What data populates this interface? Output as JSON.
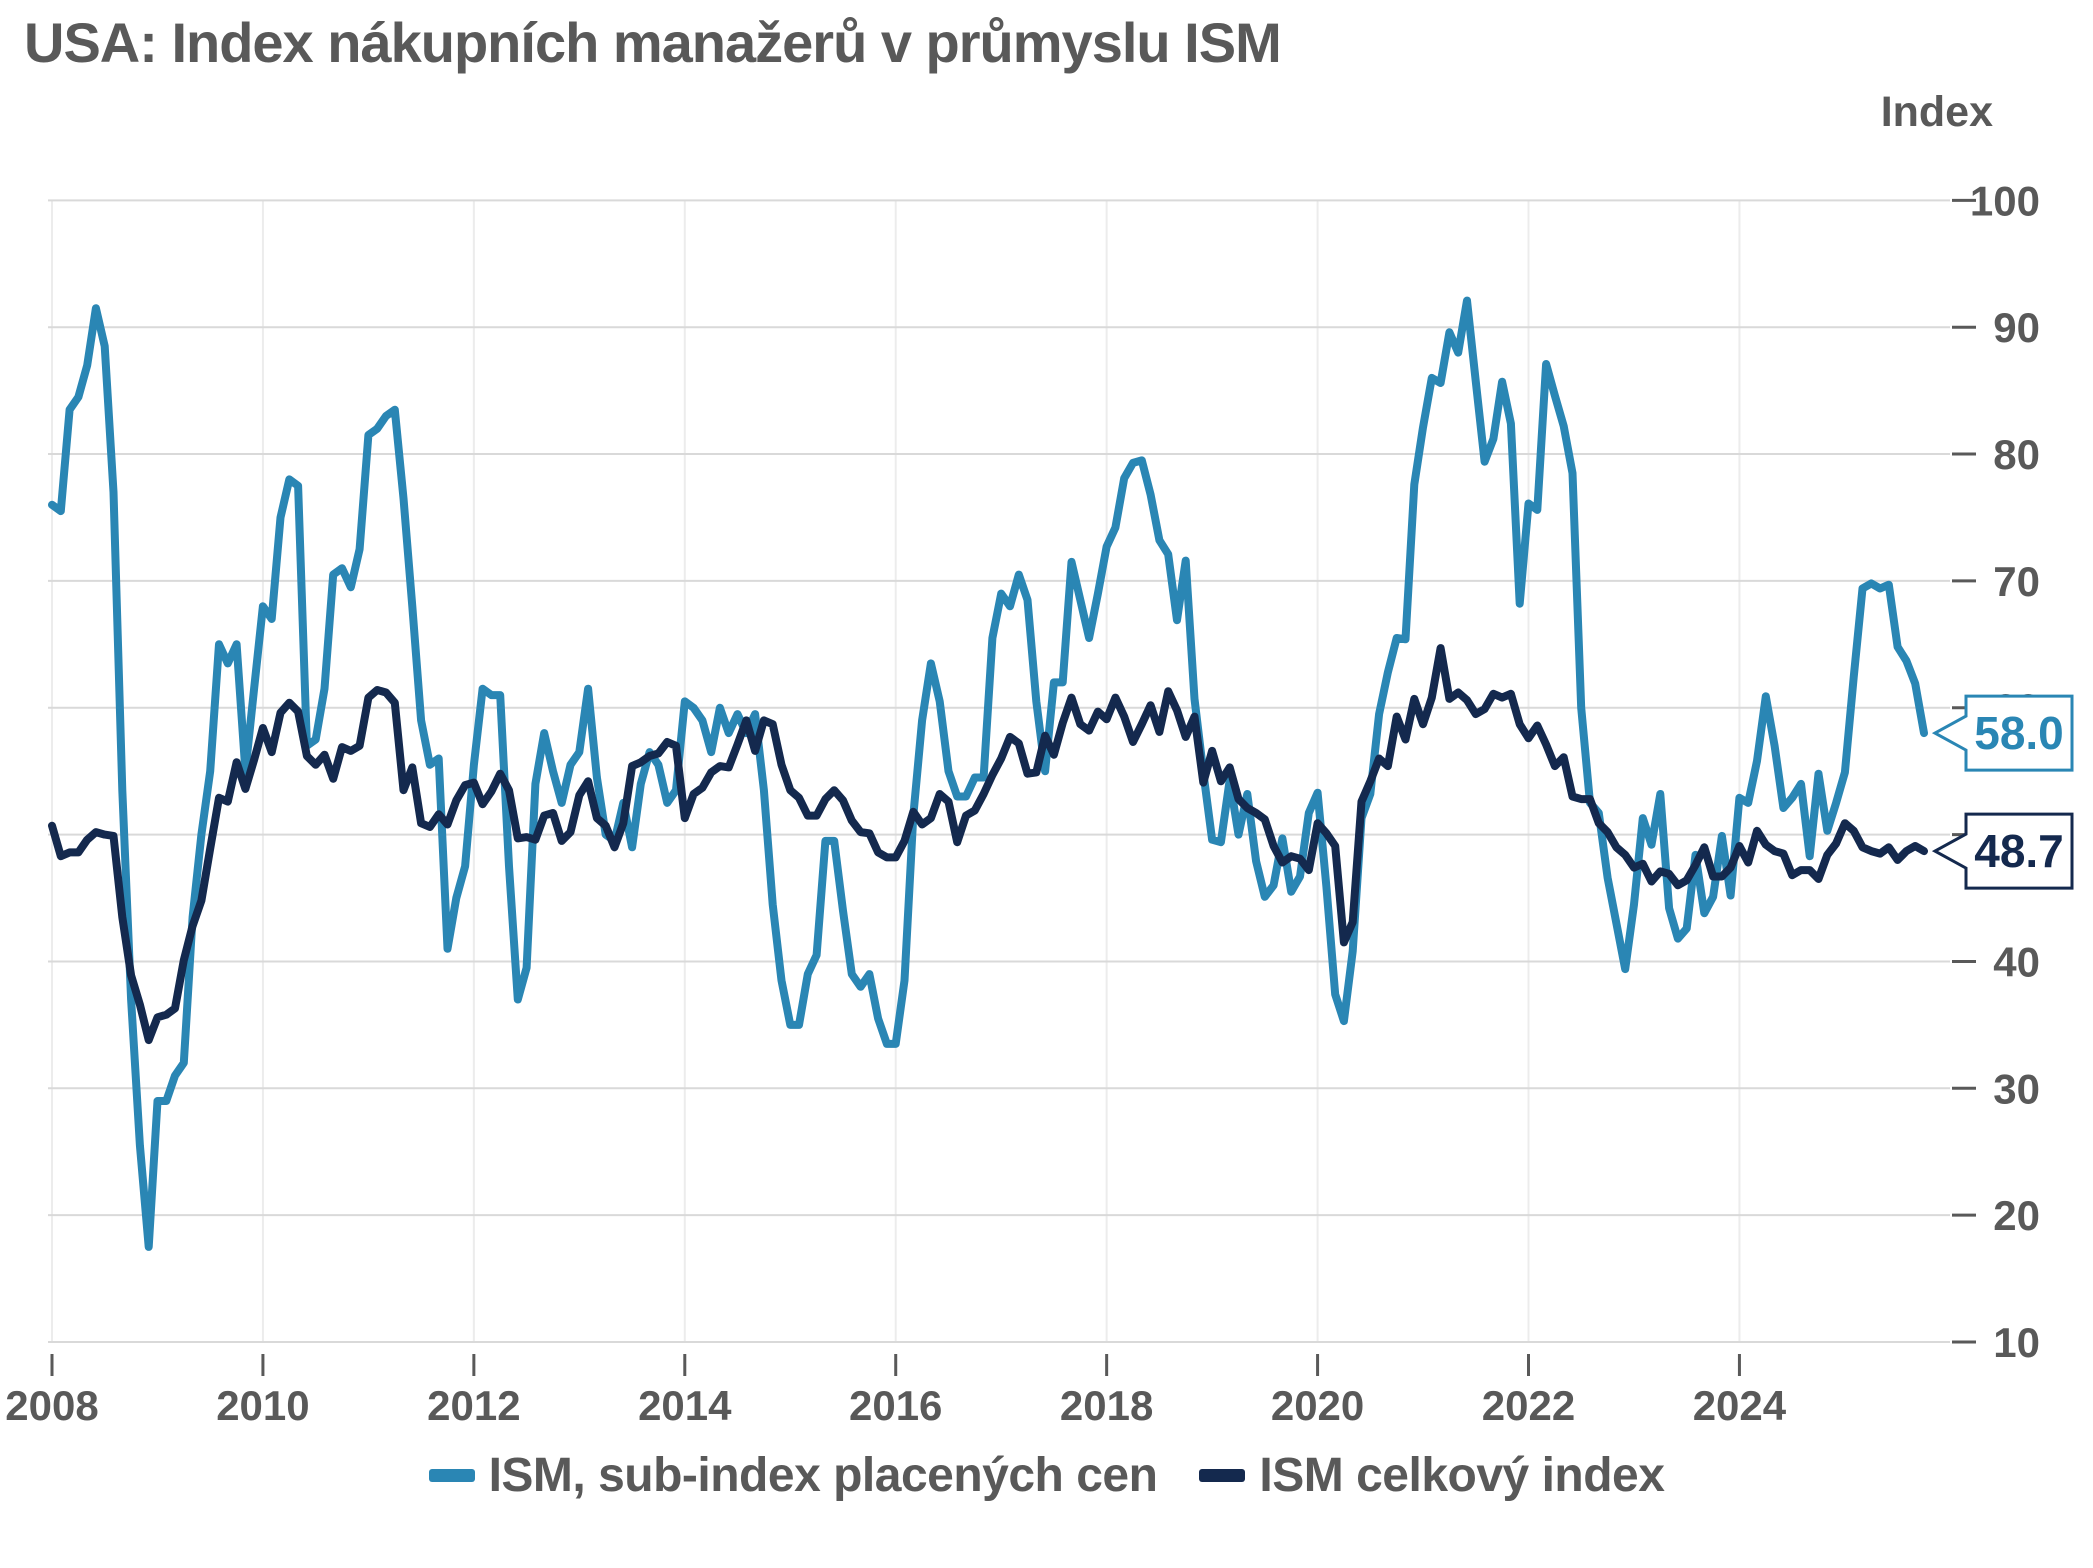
{
  "title": "USA: Index nákupních manažerů v průmyslu ISM",
  "axis": {
    "unit_label": "Index"
  },
  "legend": [
    {
      "label": "ISM, sub-index placených cen",
      "color": "#2A86B4"
    },
    {
      "label": "ISM celkový index",
      "color": "#14294E"
    }
  ],
  "callouts": [
    {
      "name": "prices-callout",
      "label": "58.0",
      "value": 58.0,
      "color": "#2A86B4"
    },
    {
      "name": "pmi-callout",
      "label": "48.7",
      "value": 48.7,
      "color": "#14294E"
    }
  ],
  "chart_data": {
    "type": "line",
    "title": "USA: Index nákupních manažerů v průmyslu ISM",
    "ylabel": "Index",
    "ylim": [
      10,
      100
    ],
    "y_ticks": [
      100,
      90,
      80,
      70,
      60,
      50,
      40,
      30,
      20,
      10
    ],
    "x_tick_years": [
      2008,
      2010,
      2012,
      2014,
      2016,
      2018,
      2020,
      2022,
      2024
    ],
    "x_start": "2008-01",
    "x_end": "2025-10",
    "frequency": "monthly",
    "grid": true,
    "legend_position": "bottom",
    "series": [
      {
        "name": "ISM, sub-index placených cen",
        "color": "#2A86B4",
        "last_value": 58.0,
        "values": [
          76.0,
          75.5,
          83.5,
          84.5,
          87.0,
          91.5,
          88.5,
          77.0,
          53.5,
          37.0,
          25.5,
          17.5,
          29.0,
          29.0,
          31.0,
          32.0,
          43.5,
          50.0,
          55.0,
          65.0,
          63.5,
          65.0,
          55.0,
          61.5,
          68.0,
          67.0,
          75.0,
          78.0,
          77.5,
          57.0,
          57.5,
          61.5,
          70.5,
          71.0,
          69.5,
          72.5,
          81.5,
          82.0,
          83.0,
          83.5,
          76.5,
          68.0,
          59.0,
          55.5,
          56.0,
          41.0,
          45.0,
          47.5,
          55.5,
          61.5,
          61.0,
          61.0,
          47.5,
          37.0,
          39.5,
          54.0,
          58.0,
          55.0,
          52.5,
          55.5,
          56.5,
          61.5,
          54.5,
          50.0,
          49.5,
          52.5,
          49.0,
          54.0,
          56.5,
          55.5,
          52.5,
          53.5,
          60.5,
          60.0,
          59.0,
          56.5,
          60.0,
          58.0,
          59.5,
          58.0,
          59.5,
          53.5,
          44.5,
          38.5,
          35.0,
          35.0,
          39.0,
          40.5,
          49.5,
          49.5,
          44.0,
          39.0,
          38.0,
          39.0,
          35.5,
          33.5,
          33.5,
          38.5,
          51.5,
          59.0,
          63.5,
          60.5,
          55.0,
          53.0,
          53.0,
          54.5,
          54.5,
          65.5,
          69.0,
          68.0,
          70.5,
          68.5,
          60.5,
          55.0,
          62.0,
          62.0,
          71.5,
          68.5,
          65.5,
          69.0,
          72.7,
          74.2,
          78.1,
          79.3,
          79.5,
          76.8,
          73.2,
          72.1,
          66.9,
          71.6,
          60.7,
          54.9,
          49.6,
          49.4,
          54.3,
          50.0,
          53.2,
          47.9,
          45.1,
          46.0,
          49.7,
          45.5,
          46.7,
          51.7,
          53.3,
          45.9,
          37.4,
          35.3,
          40.8,
          51.3,
          53.2,
          59.5,
          62.8,
          65.5,
          65.4,
          77.6,
          82.1,
          86.0,
          85.6,
          89.6,
          88.0,
          92.1,
          85.7,
          79.4,
          81.2,
          85.7,
          82.4,
          68.2,
          76.1,
          75.6,
          87.1,
          84.6,
          82.2,
          78.5,
          60.0,
          52.5,
          51.7,
          46.6,
          43.0,
          39.4,
          44.5,
          51.3,
          49.2,
          53.2,
          44.2,
          41.8,
          42.6,
          48.4,
          43.8,
          45.1,
          49.9,
          45.2,
          52.9,
          52.5,
          55.8,
          60.9,
          57.0,
          52.1,
          52.9,
          54.0,
          48.3,
          54.8,
          50.3,
          52.5,
          54.9,
          62.4,
          69.4,
          69.8,
          69.4,
          69.7,
          64.8,
          63.7,
          61.9,
          58.0
        ]
      },
      {
        "name": "ISM celkový index",
        "color": "#14294E",
        "last_value": 48.7,
        "values": [
          50.7,
          48.3,
          48.6,
          48.6,
          49.6,
          50.2,
          50.0,
          49.9,
          43.5,
          38.9,
          36.6,
          33.8,
          35.6,
          35.8,
          36.3,
          40.1,
          42.8,
          44.8,
          48.9,
          52.9,
          52.6,
          55.7,
          53.6,
          55.9,
          58.4,
          56.5,
          59.6,
          60.4,
          59.7,
          56.2,
          55.5,
          56.3,
          54.4,
          56.9,
          56.6,
          57.0,
          60.8,
          61.4,
          61.2,
          60.4,
          53.5,
          55.3,
          50.9,
          50.6,
          51.6,
          50.8,
          52.7,
          53.9,
          54.1,
          52.4,
          53.4,
          54.8,
          53.5,
          49.7,
          49.8,
          49.6,
          51.5,
          51.7,
          49.5,
          50.2,
          53.1,
          54.2,
          51.3,
          50.7,
          49.0,
          50.9,
          55.4,
          55.7,
          56.2,
          56.4,
          57.3,
          57.0,
          51.3,
          53.2,
          53.7,
          54.9,
          55.4,
          55.3,
          57.1,
          59.0,
          56.6,
          59.0,
          58.7,
          55.5,
          53.5,
          52.9,
          51.5,
          51.5,
          52.8,
          53.5,
          52.7,
          51.1,
          50.2,
          50.1,
          48.6,
          48.2,
          48.2,
          49.5,
          51.8,
          50.8,
          51.3,
          53.2,
          52.6,
          49.4,
          51.5,
          51.9,
          53.2,
          54.7,
          56.0,
          57.7,
          57.2,
          54.8,
          54.9,
          57.8,
          56.3,
          58.8,
          60.8,
          58.7,
          58.2,
          59.7,
          59.1,
          60.8,
          59.3,
          57.3,
          58.7,
          60.2,
          58.1,
          61.3,
          59.8,
          57.7,
          59.3,
          54.1,
          56.6,
          54.2,
          55.3,
          52.8,
          52.1,
          51.7,
          51.2,
          49.1,
          47.8,
          48.3,
          48.1,
          47.2,
          50.9,
          50.1,
          49.1,
          41.5,
          43.1,
          52.6,
          54.2,
          56.0,
          55.4,
          59.3,
          57.5,
          60.7,
          58.7,
          60.8,
          64.7,
          60.7,
          61.2,
          60.6,
          59.5,
          59.9,
          61.1,
          60.8,
          61.1,
          58.7,
          57.6,
          58.6,
          57.1,
          55.4,
          56.1,
          53.0,
          52.8,
          52.8,
          50.9,
          50.2,
          49.0,
          48.4,
          47.4,
          47.7,
          46.3,
          47.1,
          46.9,
          46.0,
          46.4,
          47.6,
          49.0,
          46.7,
          46.7,
          47.4,
          49.1,
          47.8,
          50.3,
          49.2,
          48.7,
          48.5,
          46.8,
          47.2,
          47.2,
          46.5,
          48.4,
          49.3,
          50.9,
          50.3,
          49.0,
          48.7,
          48.5,
          49.0,
          48.0,
          48.7,
          49.1,
          48.7
        ]
      }
    ]
  },
  "colors": {
    "grid": "#D9D9D9",
    "grid_vertical": "#ECECEC",
    "tick": "#595959",
    "text": "#595959",
    "background": "#FFFFFF"
  }
}
